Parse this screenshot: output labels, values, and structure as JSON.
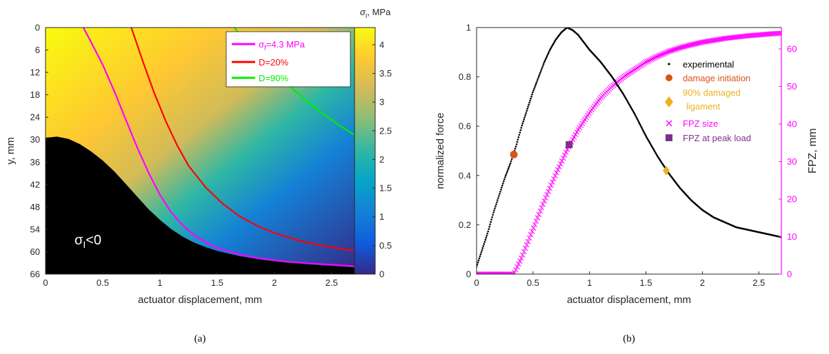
{
  "chart_data": [
    {
      "type": "heatmap",
      "panel_label": "(a)",
      "xlabel": "actuator displacement, mm",
      "ylabel": "y, mm",
      "xlim": [
        0,
        2.7
      ],
      "ylim": [
        0,
        66
      ],
      "y_reversed": true,
      "x_ticks": [
        "0",
        "0.5",
        "1",
        "1.5",
        "2",
        "2.5"
      ],
      "x_tick_values": [
        0,
        0.5,
        1,
        1.5,
        2,
        2.5
      ],
      "y_ticks": [
        "0",
        "6",
        "12",
        "18",
        "24",
        "30",
        "36",
        "42",
        "48",
        "54",
        "60",
        "66"
      ],
      "y_tick_values": [
        0,
        6,
        12,
        18,
        24,
        30,
        36,
        42,
        48,
        54,
        60,
        66
      ],
      "colorbar": {
        "label": "σI, MPa",
        "label_symbol": "σ",
        "label_sub": "I",
        "label_rest": ", MPa",
        "range": [
          0,
          4.3
        ],
        "ticks": [
          "0",
          "0.5",
          "1",
          "1.5",
          "2",
          "2.5",
          "3",
          "3.5",
          "4"
        ],
        "tick_values": [
          0,
          0.5,
          1,
          1.5,
          2,
          2.5,
          3,
          3.5,
          4
        ],
        "colormap": "parula",
        "colors": [
          "#352a87",
          "#0f5cdd",
          "#1481d6",
          "#06a4ca",
          "#2eb7a4",
          "#87bf77",
          "#d1bb59",
          "#fec832",
          "#f9fb0e"
        ]
      },
      "negative_region": {
        "label": "σI<0",
        "label_symbol": "σ",
        "label_sub": "I",
        "label_rest": "<0",
        "color": "#000000",
        "boundary": [
          [
            0,
            29.5
          ],
          [
            0.1,
            29.2
          ],
          [
            0.2,
            29.8
          ],
          [
            0.3,
            31.2
          ],
          [
            0.4,
            33.2
          ],
          [
            0.5,
            35.6
          ],
          [
            0.6,
            38.5
          ],
          [
            0.7,
            41.8
          ],
          [
            0.8,
            45.2
          ],
          [
            0.9,
            48.6
          ],
          [
            1.0,
            51.5
          ],
          [
            1.1,
            54.0
          ],
          [
            1.2,
            56.0
          ],
          [
            1.3,
            57.6
          ],
          [
            1.4,
            58.8
          ],
          [
            1.5,
            59.8
          ],
          [
            1.7,
            61.2
          ],
          [
            1.9,
            62.2
          ],
          [
            2.1,
            62.9
          ],
          [
            2.3,
            63.4
          ],
          [
            2.5,
            63.8
          ],
          [
            2.7,
            64.2
          ]
        ]
      },
      "legend": {
        "placement": "top-right",
        "entries": [
          {
            "label": "σf=4.3 MPa",
            "symbol": "σ",
            "sub": "f",
            "rest": "=4.3 MPa",
            "color": "#ff00ff"
          },
          {
            "label": "D=20%",
            "color": "#ff0000"
          },
          {
            "label": "D=90%",
            "color": "#00ee00"
          }
        ]
      },
      "series": [
        {
          "name": "σf=4.3 MPa",
          "color": "#ff00ff",
          "x": [
            0.33,
            0.4,
            0.5,
            0.6,
            0.7,
            0.8,
            0.9,
            1.0,
            1.1,
            1.2,
            1.3,
            1.4,
            1.5,
            1.7,
            1.9,
            2.1,
            2.3,
            2.5,
            2.7
          ],
          "y": [
            0,
            4.0,
            10.0,
            17.0,
            24.5,
            32.0,
            38.8,
            44.8,
            49.5,
            53.0,
            55.6,
            57.5,
            59.0,
            60.8,
            61.9,
            62.6,
            63.1,
            63.5,
            63.9
          ]
        },
        {
          "name": "D=20%",
          "color": "#ff0000",
          "x": [
            0.75,
            0.85,
            0.95,
            1.05,
            1.15,
            1.25,
            1.4,
            1.55,
            1.7,
            1.85,
            2.0,
            2.2,
            2.4,
            2.6,
            2.7
          ],
          "y": [
            0,
            9.0,
            17.5,
            25.0,
            31.5,
            37.0,
            42.8,
            47.2,
            50.6,
            53.1,
            55.0,
            56.9,
            58.3,
            59.3,
            59.7
          ]
        },
        {
          "name": "D=90%",
          "color": "#00ee00",
          "x": [
            1.65,
            1.8,
            1.95,
            2.1,
            2.25,
            2.4,
            2.55,
            2.7
          ],
          "y": [
            0,
            5.5,
            10.5,
            14.8,
            18.8,
            22.5,
            25.8,
            28.8
          ]
        }
      ]
    },
    {
      "type": "scatter",
      "panel_label": "(b)",
      "xlabel": "actuator displacement, mm",
      "ylabel": "normalized force",
      "ylabel_right": "FPZ, mm",
      "right_axis_color": "#ff00ff",
      "xlim": [
        0,
        2.7
      ],
      "ylim": [
        0,
        1
      ],
      "ylim_right": [
        0,
        65.7
      ],
      "x_ticks": [
        "0",
        "0.5",
        "1",
        "1.5",
        "2",
        "2.5"
      ],
      "x_tick_values": [
        0,
        0.5,
        1,
        1.5,
        2,
        2.5
      ],
      "y_ticks": [
        "0",
        "0.2",
        "0.4",
        "0.6",
        "0.8",
        "1"
      ],
      "y_tick_values": [
        0,
        0.2,
        0.4,
        0.6,
        0.8,
        1
      ],
      "y_right_ticks": [
        "0",
        "10",
        "20",
        "30",
        "40",
        "50",
        "60"
      ],
      "y_right_tick_values": [
        0,
        10,
        20,
        30,
        40,
        50,
        60
      ],
      "legend": {
        "placement": "right",
        "entries": [
          {
            "label": "experimental",
            "marker": "dot",
            "color": "#000000"
          },
          {
            "label": "damage initiation",
            "marker": "circle",
            "color": "#d95319"
          },
          {
            "label": "90% damaged",
            "label2": "ligament",
            "marker": "diamond",
            "color": "#edb120"
          },
          {
            "label": "FPZ size",
            "marker": "x",
            "color": "#ff00ff"
          },
          {
            "label": "FPZ at peak load",
            "marker": "square",
            "color": "#7e2f8e"
          }
        ]
      },
      "series": [
        {
          "name": "experimental",
          "axis": "left",
          "color": "#000000",
          "x": [
            0.0,
            0.05,
            0.1,
            0.15,
            0.2,
            0.25,
            0.3,
            0.35,
            0.4,
            0.45,
            0.5,
            0.55,
            0.6,
            0.65,
            0.7,
            0.75,
            0.8,
            0.85,
            0.9,
            0.95,
            1.0,
            1.1,
            1.2,
            1.3,
            1.4,
            1.5,
            1.6,
            1.7,
            1.8,
            1.9,
            2.0,
            2.1,
            2.2,
            2.3,
            2.4,
            2.5,
            2.6,
            2.7
          ],
          "y": [
            0.03,
            0.1,
            0.17,
            0.25,
            0.32,
            0.39,
            0.45,
            0.52,
            0.6,
            0.67,
            0.74,
            0.8,
            0.86,
            0.91,
            0.95,
            0.98,
            1.0,
            0.99,
            0.97,
            0.94,
            0.91,
            0.86,
            0.8,
            0.73,
            0.65,
            0.56,
            0.48,
            0.41,
            0.35,
            0.3,
            0.26,
            0.23,
            0.21,
            0.19,
            0.18,
            0.17,
            0.16,
            0.15
          ]
        },
        {
          "name": "damage initiation",
          "axis": "left",
          "color": "#d95319",
          "x": [
            0.33
          ],
          "y": [
            0.485
          ]
        },
        {
          "name": "90% damaged ligament",
          "axis": "left",
          "color": "#edb120",
          "x": [
            1.68
          ],
          "y": [
            0.42
          ]
        },
        {
          "name": "FPZ size",
          "axis": "right",
          "color": "#ff00ff",
          "x": [
            0.0,
            0.1,
            0.2,
            0.3,
            0.33,
            0.4,
            0.5,
            0.6,
            0.7,
            0.8,
            0.9,
            1.0,
            1.1,
            1.2,
            1.3,
            1.4,
            1.5,
            1.6,
            1.7,
            1.8,
            1.9,
            2.0,
            2.2,
            2.4,
            2.6,
            2.7
          ],
          "y": [
            0,
            0,
            0,
            0,
            0,
            4.5,
            12.0,
            19.5,
            26.5,
            33.0,
            38.5,
            43.0,
            47.0,
            50.0,
            52.5,
            54.5,
            56.5,
            58.0,
            59.3,
            60.3,
            61.1,
            61.8,
            62.8,
            63.5,
            64.0,
            64.2
          ]
        },
        {
          "name": "FPZ at peak load",
          "axis": "right",
          "color": "#7e2f8e",
          "x": [
            0.82
          ],
          "y": [
            34.5
          ]
        }
      ]
    }
  ]
}
